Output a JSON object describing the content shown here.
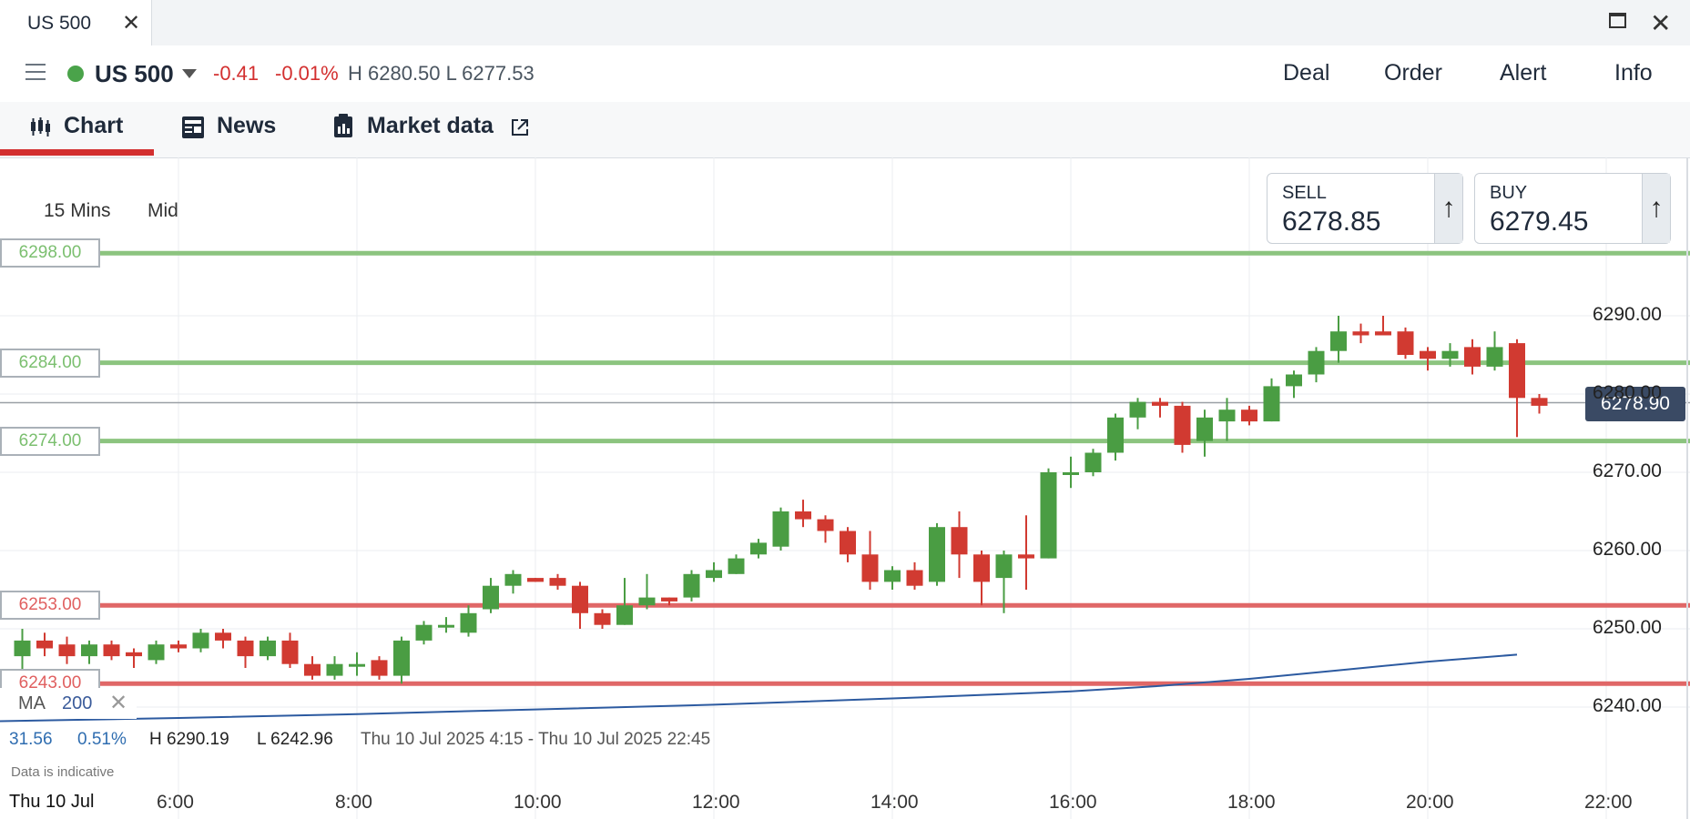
{
  "window": {
    "tab_title": "US 500",
    "tab_close": "✕",
    "close": "✕"
  },
  "instrument": {
    "name": "US 500",
    "change_abs": "-0.41",
    "change_pct": "-0.01%",
    "high_low": "H 6280.50 L 6277.53",
    "status_color": "#4aa34a"
  },
  "actions": [
    "Deal",
    "Order",
    "Alert",
    "Info"
  ],
  "subtabs": [
    {
      "label": "Chart",
      "icon": "candlestick-icon"
    },
    {
      "label": "News",
      "icon": "newspaper-icon"
    },
    {
      "label": "Market data",
      "icon": "market-data-icon",
      "external": "external-link-icon"
    }
  ],
  "chart_controls": {
    "timeframe": "15 Mins",
    "price_type": "Mid"
  },
  "sell": {
    "label": "SELL",
    "value": "6278.85",
    "arrow": "↑"
  },
  "buy": {
    "label": "BUY",
    "value": "6279.45",
    "arrow": "↑"
  },
  "current_price": "6278.90",
  "levels": [
    {
      "label": "6298.00",
      "value": 6298.0,
      "kind": "green"
    },
    {
      "label": "6284.00",
      "value": 6284.0,
      "kind": "green"
    },
    {
      "label": "6274.00",
      "value": 6274.0,
      "kind": "green"
    },
    {
      "label": "6253.00",
      "value": 6253.0,
      "kind": "red"
    },
    {
      "label": "6243.00",
      "value": 6243.0,
      "kind": "red"
    }
  ],
  "indicator": {
    "name": "MA",
    "period": "200",
    "remove": "✕"
  },
  "stats": {
    "change": "31.56",
    "change_pct": "0.51%",
    "high": "H 6290.19",
    "low": "L 6242.96",
    "range": "Thu 10 Jul 2025 4:15 - Thu 10 Jul 2025 22:45"
  },
  "disclaimer": "Data is indicative",
  "date_label": "Thu 10 Jul",
  "colors": {
    "up": "#4a9d43",
    "down": "#d13a31",
    "ma": "#2c5aa0",
    "green_level": "#8cc47f",
    "red_level": "#e06767"
  },
  "chart_data": {
    "type": "candlestick",
    "x_unit": "hours (time of day, Thu 10 Jul)",
    "x_ticks": [
      "6:00",
      "8:00",
      "10:00",
      "12:00",
      "14:00",
      "16:00",
      "18:00",
      "20:00",
      "22:00"
    ],
    "x_tick_values": [
      6,
      8,
      10,
      12,
      14,
      16,
      18,
      20,
      22
    ],
    "y_ticks": [
      "6290.00",
      "6280.00",
      "6270.00",
      "6260.00",
      "6250.00",
      "6240.00"
    ],
    "y_tick_values": [
      6290,
      6280,
      6270,
      6260,
      6250,
      6240
    ],
    "ylim": [
      6236,
      6306
    ],
    "xlim": [
      4.0,
      22.9
    ],
    "candles": [
      {
        "t": 4.25,
        "o": 6246.5,
        "h": 6250.0,
        "l": 6244.5,
        "c": 6248.5
      },
      {
        "t": 4.5,
        "o": 6248.5,
        "h": 6249.5,
        "l": 6246.5,
        "c": 6247.5
      },
      {
        "t": 4.75,
        "o": 6248.0,
        "h": 6249.0,
        "l": 6245.5,
        "c": 6246.5
      },
      {
        "t": 5.0,
        "o": 6246.5,
        "h": 6248.5,
        "l": 6245.5,
        "c": 6248.0
      },
      {
        "t": 5.25,
        "o": 6248.0,
        "h": 6248.5,
        "l": 6246.0,
        "c": 6246.5
      },
      {
        "t": 5.5,
        "o": 6247.0,
        "h": 6247.5,
        "l": 6245.0,
        "c": 6246.5
      },
      {
        "t": 5.75,
        "o": 6246.0,
        "h": 6248.5,
        "l": 6245.5,
        "c": 6248.0
      },
      {
        "t": 6.0,
        "o": 6248.0,
        "h": 6248.5,
        "l": 6247.0,
        "c": 6247.5
      },
      {
        "t": 6.25,
        "o": 6247.5,
        "h": 6250.0,
        "l": 6247.0,
        "c": 6249.5
      },
      {
        "t": 6.5,
        "o": 6249.5,
        "h": 6250.0,
        "l": 6247.5,
        "c": 6248.5
      },
      {
        "t": 6.75,
        "o": 6248.5,
        "h": 6249.0,
        "l": 6245.0,
        "c": 6246.5
      },
      {
        "t": 7.0,
        "o": 6246.5,
        "h": 6249.0,
        "l": 6246.0,
        "c": 6248.5
      },
      {
        "t": 7.25,
        "o": 6248.5,
        "h": 6249.5,
        "l": 6245.0,
        "c": 6245.5
      },
      {
        "t": 7.5,
        "o": 6245.5,
        "h": 6246.5,
        "l": 6243.5,
        "c": 6244.0
      },
      {
        "t": 7.75,
        "o": 6244.0,
        "h": 6246.5,
        "l": 6243.5,
        "c": 6245.5
      },
      {
        "t": 8.0,
        "o": 6245.5,
        "h": 6247.0,
        "l": 6244.0,
        "c": 6245.5
      },
      {
        "t": 8.25,
        "o": 6246.0,
        "h": 6246.5,
        "l": 6243.5,
        "c": 6244.0
      },
      {
        "t": 8.5,
        "o": 6244.0,
        "h": 6249.0,
        "l": 6243.0,
        "c": 6248.5
      },
      {
        "t": 8.75,
        "o": 6248.5,
        "h": 6251.0,
        "l": 6248.0,
        "c": 6250.5
      },
      {
        "t": 9.0,
        "o": 6250.5,
        "h": 6251.5,
        "l": 6249.5,
        "c": 6250.5
      },
      {
        "t": 9.25,
        "o": 6249.5,
        "h": 6253.0,
        "l": 6249.0,
        "c": 6252.0
      },
      {
        "t": 9.5,
        "o": 6252.5,
        "h": 6256.5,
        "l": 6252.0,
        "c": 6255.5
      },
      {
        "t": 9.75,
        "o": 6255.5,
        "h": 6257.5,
        "l": 6254.5,
        "c": 6257.0
      },
      {
        "t": 10.0,
        "o": 6256.5,
        "h": 6256.5,
        "l": 6256.0,
        "c": 6256.0
      },
      {
        "t": 10.25,
        "o": 6256.5,
        "h": 6257.0,
        "l": 6255.0,
        "c": 6255.5
      },
      {
        "t": 10.5,
        "o": 6255.5,
        "h": 6256.0,
        "l": 6250.0,
        "c": 6252.0
      },
      {
        "t": 10.75,
        "o": 6252.0,
        "h": 6252.5,
        "l": 6250.0,
        "c": 6250.5
      },
      {
        "t": 11.0,
        "o": 6250.5,
        "h": 6256.5,
        "l": 6250.5,
        "c": 6253.0
      },
      {
        "t": 11.25,
        "o": 6253.0,
        "h": 6257.0,
        "l": 6252.5,
        "c": 6254.0
      },
      {
        "t": 11.5,
        "o": 6254.0,
        "h": 6254.0,
        "l": 6253.0,
        "c": 6253.5
      },
      {
        "t": 11.75,
        "o": 6254.0,
        "h": 6257.5,
        "l": 6253.5,
        "c": 6257.0
      },
      {
        "t": 12.0,
        "o": 6256.5,
        "h": 6258.5,
        "l": 6256.0,
        "c": 6257.5
      },
      {
        "t": 12.25,
        "o": 6257.0,
        "h": 6259.5,
        "l": 6257.0,
        "c": 6259.0
      },
      {
        "t": 12.5,
        "o": 6259.5,
        "h": 6261.5,
        "l": 6259.0,
        "c": 6261.0
      },
      {
        "t": 12.75,
        "o": 6260.5,
        "h": 6265.5,
        "l": 6260.0,
        "c": 6265.0
      },
      {
        "t": 13.0,
        "o": 6265.0,
        "h": 6266.5,
        "l": 6263.0,
        "c": 6264.0
      },
      {
        "t": 13.25,
        "o": 6264.0,
        "h": 6264.5,
        "l": 6261.0,
        "c": 6262.5
      },
      {
        "t": 13.5,
        "o": 6262.5,
        "h": 6263.0,
        "l": 6258.5,
        "c": 6259.5
      },
      {
        "t": 13.75,
        "o": 6259.5,
        "h": 6262.5,
        "l": 6255.0,
        "c": 6256.0
      },
      {
        "t": 14.0,
        "o": 6256.0,
        "h": 6258.0,
        "l": 6255.0,
        "c": 6257.5
      },
      {
        "t": 14.25,
        "o": 6257.5,
        "h": 6258.5,
        "l": 6255.0,
        "c": 6255.5
      },
      {
        "t": 14.5,
        "o": 6256.0,
        "h": 6263.5,
        "l": 6255.5,
        "c": 6263.0
      },
      {
        "t": 14.75,
        "o": 6263.0,
        "h": 6265.0,
        "l": 6256.5,
        "c": 6259.5
      },
      {
        "t": 15.0,
        "o": 6259.5,
        "h": 6260.0,
        "l": 6253.0,
        "c": 6256.0
      },
      {
        "t": 15.25,
        "o": 6256.5,
        "h": 6260.0,
        "l": 6252.0,
        "c": 6259.5
      },
      {
        "t": 15.5,
        "o": 6259.5,
        "h": 6264.5,
        "l": 6255.0,
        "c": 6259.0
      },
      {
        "t": 15.75,
        "o": 6259.0,
        "h": 6270.5,
        "l": 6259.0,
        "c": 6270.0
      },
      {
        "t": 16.0,
        "o": 6270.0,
        "h": 6272.0,
        "l": 6268.0,
        "c": 6270.0
      },
      {
        "t": 16.25,
        "o": 6270.0,
        "h": 6273.0,
        "l": 6269.5,
        "c": 6272.5
      },
      {
        "t": 16.5,
        "o": 6272.5,
        "h": 6277.5,
        "l": 6271.5,
        "c": 6277.0
      },
      {
        "t": 16.75,
        "o": 6277.0,
        "h": 6279.5,
        "l": 6275.5,
        "c": 6279.0
      },
      {
        "t": 17.0,
        "o": 6279.0,
        "h": 6279.5,
        "l": 6277.0,
        "c": 6278.5
      },
      {
        "t": 17.25,
        "o": 6278.5,
        "h": 6279.0,
        "l": 6272.5,
        "c": 6273.5
      },
      {
        "t": 17.5,
        "o": 6274.0,
        "h": 6278.0,
        "l": 6272.0,
        "c": 6277.0
      },
      {
        "t": 17.75,
        "o": 6276.5,
        "h": 6279.5,
        "l": 6274.0,
        "c": 6278.0
      },
      {
        "t": 18.0,
        "o": 6278.0,
        "h": 6278.5,
        "l": 6276.0,
        "c": 6276.5
      },
      {
        "t": 18.25,
        "o": 6276.5,
        "h": 6282.0,
        "l": 6276.5,
        "c": 6281.0
      },
      {
        "t": 18.5,
        "o": 6281.0,
        "h": 6283.0,
        "l": 6279.5,
        "c": 6282.5
      },
      {
        "t": 18.75,
        "o": 6282.5,
        "h": 6286.0,
        "l": 6281.5,
        "c": 6285.5
      },
      {
        "t": 19.0,
        "o": 6285.5,
        "h": 6290.0,
        "l": 6284.0,
        "c": 6288.0
      },
      {
        "t": 19.25,
        "o": 6288.0,
        "h": 6289.0,
        "l": 6286.5,
        "c": 6287.5
      },
      {
        "t": 19.5,
        "o": 6288.0,
        "h": 6290.0,
        "l": 6287.5,
        "c": 6287.5
      },
      {
        "t": 19.75,
        "o": 6288.0,
        "h": 6288.5,
        "l": 6284.5,
        "c": 6285.0
      },
      {
        "t": 20.0,
        "o": 6285.5,
        "h": 6286.0,
        "l": 6283.0,
        "c": 6284.5
      },
      {
        "t": 20.25,
        "o": 6284.5,
        "h": 6286.5,
        "l": 6283.5,
        "c": 6285.5
      },
      {
        "t": 20.5,
        "o": 6286.0,
        "h": 6287.0,
        "l": 6282.5,
        "c": 6283.5
      },
      {
        "t": 20.75,
        "o": 6283.5,
        "h": 6288.0,
        "l": 6283.0,
        "c": 6286.0
      },
      {
        "t": 21.0,
        "o": 6286.5,
        "h": 6287.0,
        "l": 6274.5,
        "c": 6279.5
      },
      {
        "t": 21.25,
        "o": 6279.5,
        "h": 6280.0,
        "l": 6277.5,
        "c": 6278.5
      }
    ],
    "ma": {
      "name": "MA 200",
      "t": [
        4.0,
        6.0,
        8.0,
        10.0,
        12.0,
        14.0,
        16.0,
        17.0,
        18.0,
        19.0,
        20.0,
        21.0
      ],
      "values": [
        6238.2,
        6238.6,
        6239.1,
        6239.7,
        6240.3,
        6241.1,
        6242.0,
        6242.7,
        6243.6,
        6244.7,
        6245.8,
        6246.7
      ]
    }
  }
}
